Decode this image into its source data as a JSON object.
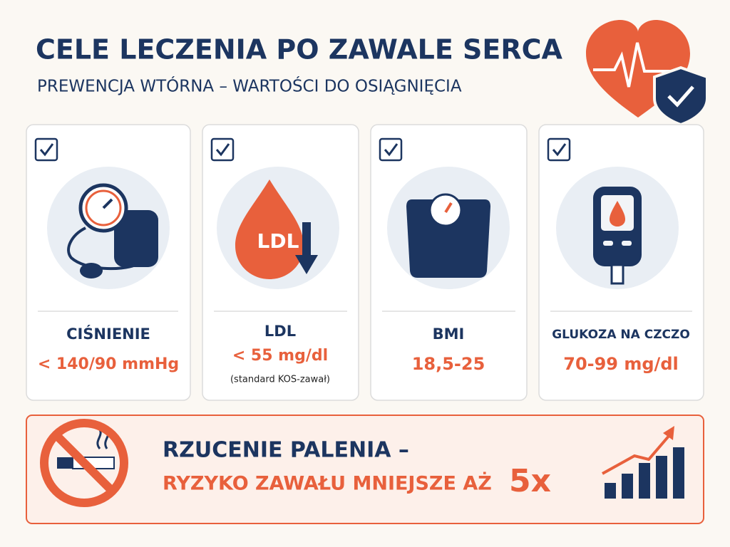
{
  "header": {
    "title": "CELE LECZENIA PO ZAWALE SERCA",
    "subtitle": "PREWENCJA WTÓRNA – WARTOŚCI DO OSIĄGNIĘCIA"
  },
  "cards": [
    {
      "label": "CIŚNIENIE",
      "value": "< 140/90 mmHg"
    },
    {
      "label": "LDL",
      "value": "< 55 mg/dl",
      "note": "(standard KOS-zawał)",
      "icon_text": "LDL"
    },
    {
      "label": "BMI",
      "value": "18,5-25"
    },
    {
      "label": "GLUKOZA NA CZCZO",
      "value": "70-99 mg/dl"
    }
  ],
  "banner": {
    "line1": "RZUCENIE PALENIA –",
    "line2": "RYZYKO ZAWAŁU MNIEJSZE AŻ",
    "emphasis": "5x"
  }
}
